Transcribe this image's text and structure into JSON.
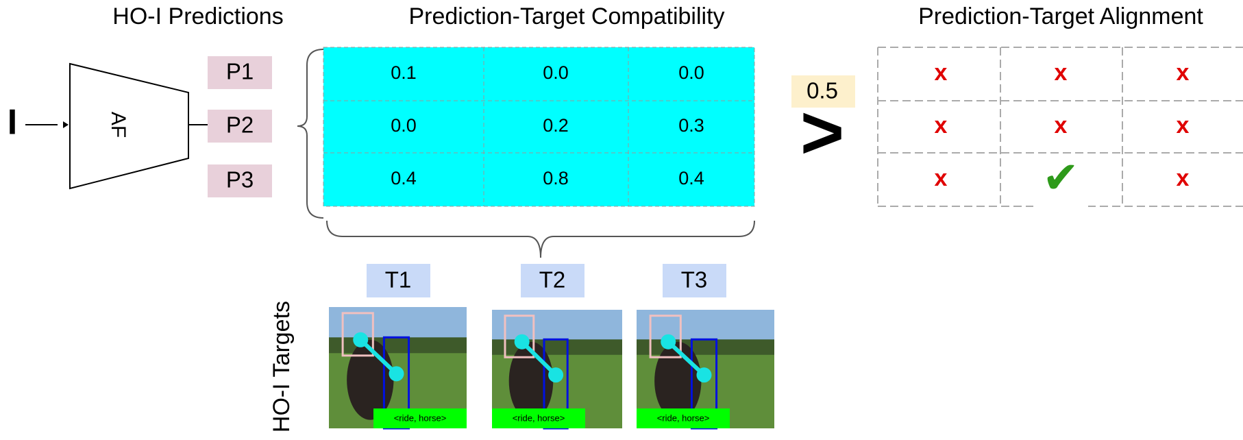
{
  "sections": {
    "predictions": "HO-I Predictions",
    "compatibility": "Prediction-Target Compatibility",
    "alignment": "Prediction-Target Alignment",
    "targets": "HO-I Targets"
  },
  "input_label": "I",
  "model_label": "AF",
  "predictions": [
    "P1",
    "P2",
    "P3"
  ],
  "compatibility": [
    [
      "0.1",
      "0.0",
      "0.0"
    ],
    [
      "0.0",
      "0.2",
      "0.3"
    ],
    [
      "0.4",
      "0.8",
      "0.4"
    ]
  ],
  "threshold": "0.5",
  "comparator": ">",
  "alignment": [
    [
      "x",
      "x",
      "x"
    ],
    [
      "x",
      "x",
      "x"
    ],
    [
      "x",
      "✔",
      "x"
    ]
  ],
  "targets": [
    "T1",
    "T2",
    "T3"
  ],
  "target_captions": [
    "<ride, horse>",
    "<ride, horse>",
    "<ride, horse>"
  ]
}
